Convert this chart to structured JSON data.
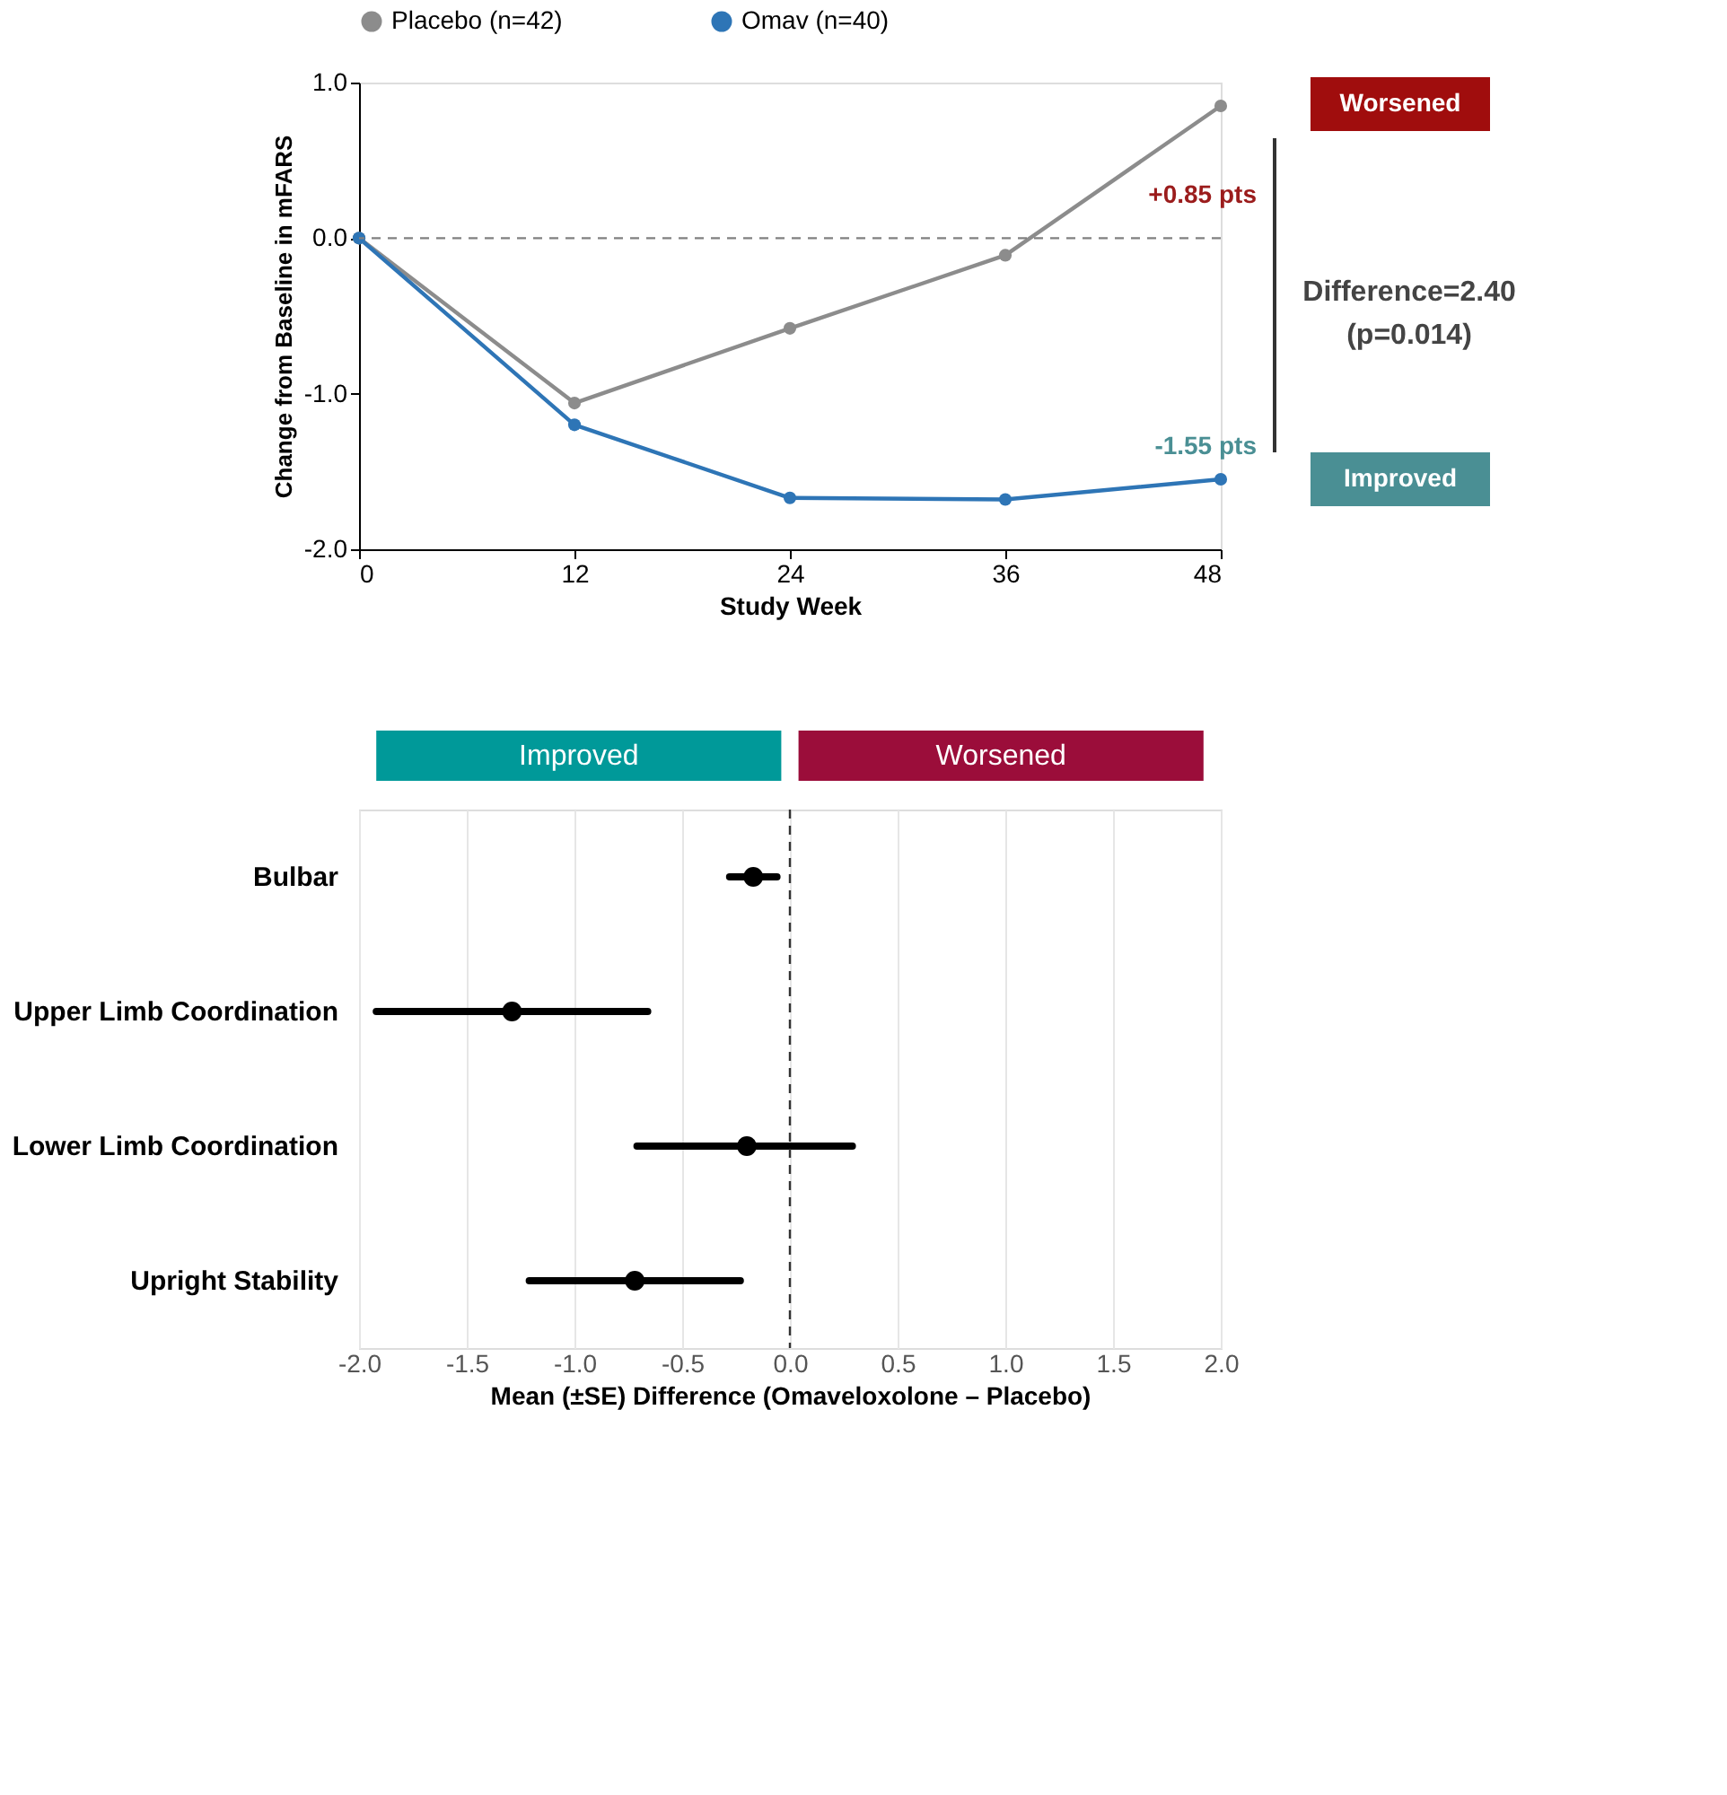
{
  "chart_data": [
    {
      "type": "line",
      "xlabel": "Study Week",
      "ylabel": "Change from Baseline in mFARS",
      "x": [
        0,
        12,
        24,
        36,
        48
      ],
      "series": [
        {
          "name": "Placebo (n=42)",
          "color": "#8c8c8c",
          "values": [
            0,
            -1.06,
            -0.58,
            -0.11,
            0.85
          ]
        },
        {
          "name": "Omav (n=40)",
          "color": "#2e75b6",
          "values": [
            0,
            -1.2,
            -1.67,
            -1.68,
            -1.55
          ]
        }
      ],
      "xlim": [
        0,
        48
      ],
      "xticks": [
        0,
        12,
        24,
        36,
        48
      ],
      "ylim": [
        -2,
        1
      ],
      "yticks": [
        {
          "value": -2,
          "label": "-2.0"
        },
        {
          "value": -1,
          "label": "-1.0"
        },
        {
          "value": 0,
          "label": "0.0"
        },
        {
          "value": 1,
          "label": "1.0"
        }
      ],
      "ref_lines": [
        {
          "axis": "y",
          "value": 0,
          "label": null,
          "color": "#808080",
          "line_style": "dashed"
        }
      ],
      "annotations": [
        {
          "text": "+0.85 pts",
          "x": 48,
          "y": 0.85
        },
        {
          "text": "-1.55 pts",
          "x": 48,
          "y": -1.55
        },
        "Difference=2.40",
        "(p=0.014)",
        "Worsened",
        "Improved"
      ],
      "legend": "top",
      "marker": "circle",
      "line_style": "solid"
    },
    {
      "type": "scatter",
      "orientation": "horizontal",
      "xlabel": "Mean (±SE) Difference (Omaveloxolone – Placebo)",
      "categories": [
        "Bulbar",
        "Upper Limb Coordination",
        "Lower Limb Coordination",
        "Upright Stability"
      ],
      "series": [
        {
          "color": "#000000",
          "values": [
            -0.17,
            -1.29,
            -0.2,
            -0.72
          ],
          "errors": [
            [
              -0.28,
              -0.06
            ],
            [
              -1.92,
              -0.66
            ],
            [
              -0.71,
              0.29
            ],
            [
              -1.21,
              -0.23
            ]
          ]
        }
      ],
      "xlim": [
        -2,
        2
      ],
      "xticks": [
        {
          "value": -2,
          "label": "-2.0"
        },
        {
          "value": -1.5,
          "label": "-1.5"
        },
        {
          "value": -1,
          "label": "-1.0"
        },
        {
          "value": -0.5,
          "label": "-0.5"
        },
        {
          "value": 0,
          "label": "0.0"
        },
        {
          "value": 0.5,
          "label": "0.5"
        },
        {
          "value": 1,
          "label": "1.0"
        },
        {
          "value": 1.5,
          "label": "1.5"
        },
        {
          "value": 2,
          "label": "2.0"
        }
      ],
      "ref_lines": [
        {
          "axis": "x",
          "value": 0,
          "label": null,
          "color": "#333333",
          "line_style": "dashed"
        }
      ],
      "annotations": [
        "Improved",
        "Worsened"
      ],
      "grid": "x",
      "marker": "circle"
    }
  ]
}
